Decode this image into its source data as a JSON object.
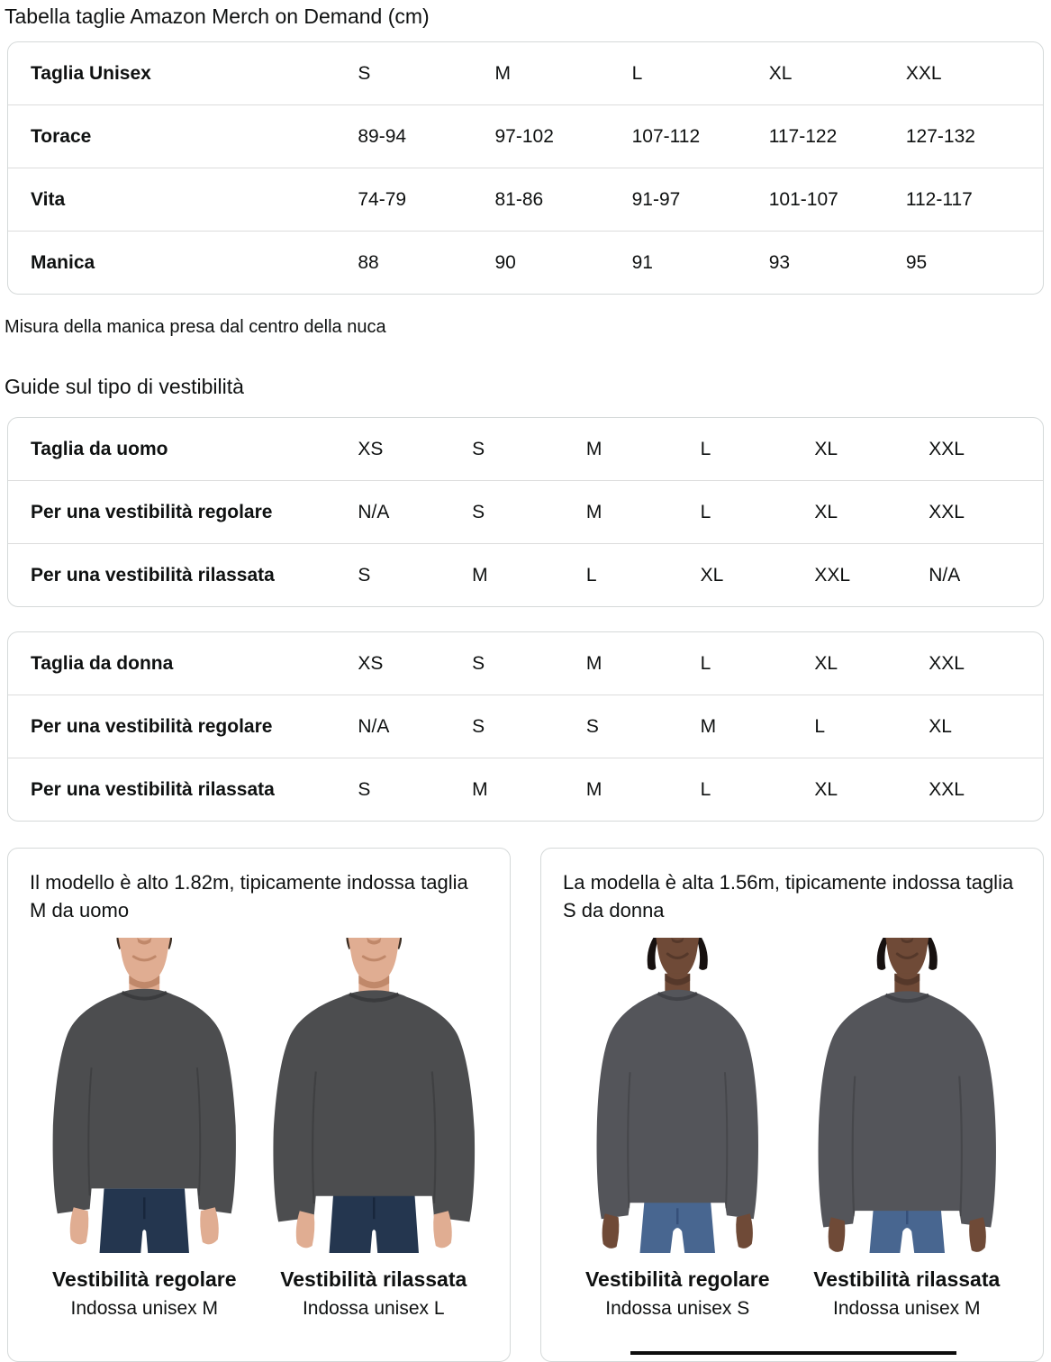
{
  "page": {
    "title": "Tabella taglie Amazon Merch on Demand (cm)",
    "note": "Misura della manica presa dal centro della nuca",
    "fit_section_title": "Guide sul tipo di vestibilità"
  },
  "size_table": {
    "rows": [
      {
        "label": "Taglia Unisex",
        "values": [
          "S",
          "M",
          "L",
          "XL",
          "XXL"
        ]
      },
      {
        "label": "Torace",
        "values": [
          "89-94",
          "97-102",
          "107-112",
          "117-122",
          "127-132"
        ]
      },
      {
        "label": "Vita",
        "values": [
          "74-79",
          "81-86",
          "91-97",
          "101-107",
          "112-117"
        ]
      },
      {
        "label": "Manica",
        "values": [
          "88",
          "90",
          "91",
          "93",
          "95"
        ]
      }
    ]
  },
  "fit_table_men": {
    "rows": [
      {
        "label": "Taglia da uomo",
        "values": [
          "XS",
          "S",
          "M",
          "L",
          "XL",
          "XXL"
        ]
      },
      {
        "label": "Per una vestibilità regolare",
        "values": [
          "N/A",
          "S",
          "M",
          "L",
          "XL",
          "XXL"
        ]
      },
      {
        "label": "Per una vestibilità rilassata",
        "values": [
          "S",
          "M",
          "L",
          "XL",
          "XXL",
          "N/A"
        ]
      }
    ]
  },
  "fit_table_women": {
    "rows": [
      {
        "label": "Taglia da donna",
        "values": [
          "XS",
          "S",
          "M",
          "L",
          "XL",
          "XXL"
        ]
      },
      {
        "label": "Per una vestibilità regolare",
        "values": [
          "N/A",
          "S",
          "S",
          "M",
          "L",
          "XL"
        ]
      },
      {
        "label": "Per una vestibilità rilassata",
        "values": [
          "S",
          "M",
          "M",
          "L",
          "XL",
          "XXL"
        ]
      }
    ]
  },
  "cards": {
    "men": {
      "heading": "Il modello è alto 1.82m, tipicamente indossa taglia M da uomo",
      "figures": [
        {
          "fit_label": "Vestibilità regolare",
          "size_label": "Indossa unisex M"
        },
        {
          "fit_label": "Vestibilità rilassata",
          "size_label": "Indossa unisex L"
        }
      ],
      "colors": {
        "skin": "#e0ad92",
        "skin_shadow": "#c0886a",
        "hair": "#3b2d23",
        "shirt": "#4c4d4f",
        "shirt_dark": "#3a3b3d",
        "jeans": "#24364f",
        "jeans_dark": "#18273c"
      }
    },
    "women": {
      "heading": "La modella è alta 1.56m, tipicamente indossa taglia S da donna",
      "figures": [
        {
          "fit_label": "Vestibilità regolare",
          "size_label": "Indossa unisex S"
        },
        {
          "fit_label": "Vestibilità rilassata",
          "size_label": "Indossa unisex M"
        }
      ],
      "colors": {
        "skin": "#6f4a37",
        "skin_shadow": "#55382a",
        "hair": "#171110",
        "shirt": "#54555a",
        "shirt_dark": "#414247",
        "jeans": "#486690",
        "jeans_dark": "#36507a"
      }
    }
  },
  "ui_colors": {
    "table_border": "#d5d9d9",
    "row_divider": "#dcdcdc",
    "text": "#0f1111"
  }
}
